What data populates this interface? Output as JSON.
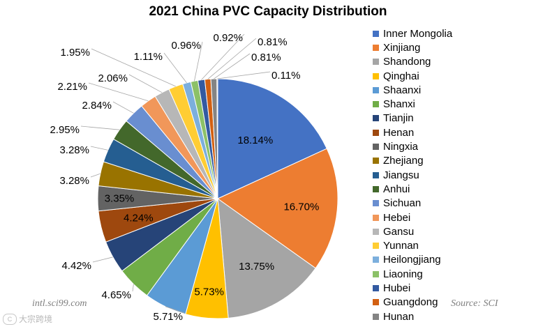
{
  "chart_data": {
    "type": "pie",
    "title": "2021 China PVC Capacity Distribution",
    "slices": [
      {
        "label": "Inner Mongolia",
        "value": 18.14,
        "display": "18.14%",
        "color": "#4472C4"
      },
      {
        "label": "Xinjiang",
        "value": 16.7,
        "display": "16.70%",
        "color": "#ED7D31"
      },
      {
        "label": "Shandong",
        "value": 13.75,
        "display": "13.75%",
        "color": "#A5A5A5"
      },
      {
        "label": "Qinghai",
        "value": 5.73,
        "display": "5.73%",
        "color": "#FFC000"
      },
      {
        "label": "Shaanxi",
        "value": 5.71,
        "display": "5.71%",
        "color": "#5B9BD5"
      },
      {
        "label": "Shanxi",
        "value": 4.65,
        "display": "4.65%",
        "color": "#70AD47"
      },
      {
        "label": "Tianjin",
        "value": 4.42,
        "display": "4.42%",
        "color": "#264478"
      },
      {
        "label": "Henan",
        "value": 4.24,
        "display": "4.24%",
        "color": "#9E480E"
      },
      {
        "label": "Ningxia",
        "value": 3.35,
        "display": "3.35%",
        "color": "#636363"
      },
      {
        "label": "Zhejiang",
        "value": 3.28,
        "display": "3.28%",
        "color": "#997300"
      },
      {
        "label": "Jiangsu",
        "value": 3.28,
        "display": "3.28%",
        "color": "#255E91"
      },
      {
        "label": "Anhui",
        "value": 2.95,
        "display": "2.95%",
        "color": "#43682B"
      },
      {
        "label": "Sichuan",
        "value": 2.84,
        "display": "2.84%",
        "color": "#698ED0"
      },
      {
        "label": "Hebei",
        "value": 2.21,
        "display": "2.21%",
        "color": "#F1975A"
      },
      {
        "label": "Gansu",
        "value": 2.06,
        "display": "2.06%",
        "color": "#B7B7B7"
      },
      {
        "label": "Yunnan",
        "value": 1.95,
        "display": "1.95%",
        "color": "#FFCD33"
      },
      {
        "label": "Heilongjiang",
        "value": 1.11,
        "display": "1.11%",
        "color": "#7CAFDD"
      },
      {
        "label": "Liaoning",
        "value": 0.96,
        "display": "0.96%",
        "color": "#8CC168"
      },
      {
        "label": "Hubei",
        "value": 0.92,
        "display": "0.92%",
        "color": "#335AA1"
      },
      {
        "label": "Guangdong",
        "value": 0.81,
        "display": "0.81%",
        "color": "#D26012"
      },
      {
        "label": "Hunan",
        "value": 0.81,
        "display": "0.81%",
        "color": "#848484"
      },
      {
        "label": "",
        "value": 0.11,
        "display": "0.11%",
        "color": "#A6A6A6"
      }
    ],
    "legend_position": "right",
    "label_color_dark": "#000000",
    "leader_line_color": "#A6A6A6"
  },
  "annotations": {
    "watermark_site": "intl.sci99.com",
    "source": "Source: SCI",
    "logo_text": "大宗跨境",
    "logo_mark": "C"
  }
}
